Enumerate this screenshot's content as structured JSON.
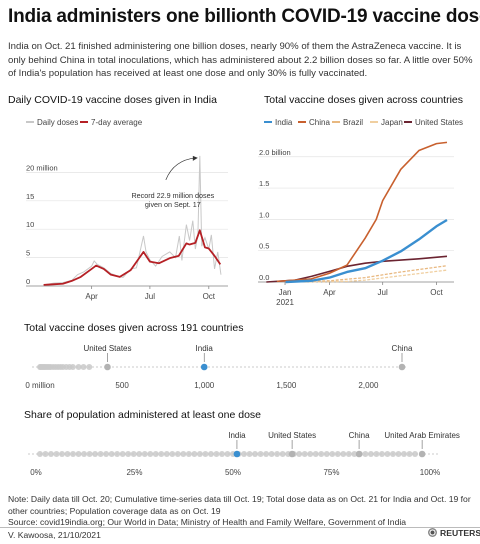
{
  "title": "India administers one billionth COVID-19 vaccine dose",
  "subtitle": "India on Oct. 21 finished administering one billion doses, nearly 90% of them the AstraZeneca vaccine. It is only behind China in total inoculations, which has administered about 2.2 billion doses so far. A little over 50% of India's population has received at least one dose and only 30% is fully vaccinated.",
  "note": "Note: Daily data till Oct. 20; Cumulative time-series data till Oct. 19; Total dose data as on Oct. 21 for India and Oct. 19 for other countries; Population coverage data as on Oct. 19",
  "source": "Source: covid19india.org; Our World in Data; Ministry of Health and Family Welfare, Government of India",
  "byline": "V. Kawoosa, 21/10/2021",
  "logo": "REUTERS",
  "colors": {
    "india": "#3a8fd0",
    "china": "#c8602e",
    "brazil": "#e8b880",
    "japan": "#f0cfa0",
    "us": "#6b2431",
    "avg": "#b52025",
    "daily": "#c8c8c8",
    "dot": "#c9c9c9"
  },
  "chart_data": [
    {
      "type": "line",
      "title": "Daily COVID-19 vaccine doses given in India",
      "legend": [
        "Daily doses",
        "7-day average"
      ],
      "unit_label": "20 million",
      "y_ticks": [
        "0",
        "5",
        "10",
        "15",
        "20 million"
      ],
      "ylim": [
        0,
        25
      ],
      "x_ticks": [
        "Apr",
        "Jul",
        "Oct"
      ],
      "annotation": "Record 22.9 million doses given on Sept. 17",
      "series": [
        {
          "name": "7-day average",
          "x": [
            "2021-01-16",
            "2021-01-31",
            "2021-02-15",
            "2021-03-01",
            "2021-03-15",
            "2021-04-01",
            "2021-04-08",
            "2021-04-20",
            "2021-05-01",
            "2021-05-15",
            "2021-06-01",
            "2021-06-21",
            "2021-07-01",
            "2021-07-15",
            "2021-08-01",
            "2021-08-15",
            "2021-08-27",
            "2021-09-01",
            "2021-09-10",
            "2021-09-17",
            "2021-09-25",
            "2021-10-01",
            "2021-10-10",
            "2021-10-19"
          ],
          "values": [
            0.2,
            0.3,
            0.4,
            0.9,
            1.6,
            3.0,
            3.6,
            3.0,
            2.0,
            1.6,
            2.8,
            6.0,
            4.3,
            4.0,
            4.9,
            5.3,
            7.5,
            7.3,
            7.6,
            9.8,
            6.8,
            6.6,
            5.3,
            3.8
          ]
        },
        {
          "name": "Daily doses",
          "x": [
            "2021-01-16",
            "2021-02-01",
            "2021-02-15",
            "2021-03-01",
            "2021-03-10",
            "2021-03-20",
            "2021-04-01",
            "2021-04-05",
            "2021-04-10",
            "2021-04-20",
            "2021-05-01",
            "2021-05-10",
            "2021-05-20",
            "2021-06-01",
            "2021-06-10",
            "2021-06-21",
            "2021-06-25",
            "2021-07-01",
            "2021-07-10",
            "2021-07-20",
            "2021-08-01",
            "2021-08-10",
            "2021-08-16",
            "2021-08-20",
            "2021-08-27",
            "2021-09-01",
            "2021-09-06",
            "2021-09-10",
            "2021-09-14",
            "2021-09-17",
            "2021-09-20",
            "2021-09-25",
            "2021-10-01",
            "2021-10-05",
            "2021-10-10",
            "2021-10-15",
            "2021-10-20"
          ],
          "values": [
            0.2,
            0.5,
            0.6,
            1.0,
            2.0,
            2.5,
            3.5,
            4.4,
            3.8,
            3.2,
            2.2,
            1.8,
            1.5,
            3.0,
            3.2,
            8.8,
            6.0,
            4.6,
            3.5,
            5.2,
            6.0,
            5.0,
            8.8,
            4.5,
            10.8,
            8.0,
            11.5,
            6.5,
            9.0,
            22.9,
            7.0,
            8.5,
            6.5,
            9.0,
            3.0,
            6.0,
            2.0
          ]
        }
      ]
    },
    {
      "type": "line",
      "title": "Total vaccine doses given across countries",
      "legend_labels": [
        "India",
        "China",
        "Brazil",
        "Japan",
        "United States"
      ],
      "y_ticks": [
        "0.0",
        "0.5",
        "1.0",
        "1.5",
        "2.0 billion"
      ],
      "ylim": [
        0,
        2.3
      ],
      "x_ticks": [
        "Jan\n2021",
        "Apr",
        "Jul",
        "Oct"
      ],
      "series": [
        {
          "name": "India",
          "x": [
            "2021-01-16",
            "2021-03-01",
            "2021-04-01",
            "2021-05-01",
            "2021-06-01",
            "2021-07-01",
            "2021-08-01",
            "2021-09-01",
            "2021-10-01",
            "2021-10-19"
          ],
          "values": [
            0,
            0.02,
            0.07,
            0.16,
            0.22,
            0.34,
            0.49,
            0.68,
            0.89,
            0.99
          ]
        },
        {
          "name": "China",
          "x": [
            "2021-01-01",
            "2021-03-01",
            "2021-04-01",
            "2021-05-01",
            "2021-06-01",
            "2021-06-20",
            "2021-07-01",
            "2021-08-01",
            "2021-09-01",
            "2021-10-01",
            "2021-10-19"
          ],
          "values": [
            0.01,
            0.05,
            0.14,
            0.27,
            0.7,
            1.0,
            1.3,
            1.8,
            2.1,
            2.21,
            2.23
          ]
        },
        {
          "name": "Brazil",
          "x": [
            "2021-01-17",
            "2021-04-01",
            "2021-06-01",
            "2021-08-01",
            "2021-10-19"
          ],
          "values": [
            0,
            0.02,
            0.07,
            0.16,
            0.26
          ]
        },
        {
          "name": "Japan",
          "x": [
            "2021-02-17",
            "2021-05-01",
            "2021-06-01",
            "2021-08-01",
            "2021-10-19"
          ],
          "values": [
            0,
            0.01,
            0.03,
            0.1,
            0.19
          ]
        },
        {
          "name": "United States",
          "x": [
            "2020-12-14",
            "2021-02-01",
            "2021-03-01",
            "2021-04-01",
            "2021-05-01",
            "2021-06-01",
            "2021-07-01",
            "2021-08-01",
            "2021-09-01",
            "2021-10-19"
          ],
          "values": [
            0,
            0.03,
            0.09,
            0.17,
            0.25,
            0.3,
            0.33,
            0.35,
            0.37,
            0.41
          ]
        }
      ]
    },
    {
      "type": "scatter",
      "title": "Total vaccine doses given across 191 countries",
      "x_ticks": [
        0,
        500,
        1000,
        1500,
        2000
      ],
      "x_tick_labels": [
        "0 million",
        "500",
        "1,000",
        "1,500",
        "2,000"
      ],
      "xlim": [
        0,
        2180
      ],
      "highlight": [
        {
          "name": "United States",
          "value": 411
        },
        {
          "name": "India",
          "value": 1000
        },
        {
          "name": "China",
          "value": 2230
        }
      ],
      "others": [
        0,
        5,
        12,
        20,
        28,
        36,
        45,
        55,
        65,
        80,
        95,
        110,
        125,
        140,
        160,
        180,
        200,
        235,
        265,
        300
      ]
    },
    {
      "type": "scatter",
      "title": "Share of population administered at least one dose",
      "x_ticks": [
        0,
        25,
        50,
        75,
        100
      ],
      "x_tick_labels": [
        "0%",
        "25%",
        "50%",
        "75%",
        "100%"
      ],
      "xlim": [
        0,
        100
      ],
      "highlight": [
        {
          "name": "India",
          "value": 51
        },
        {
          "name": "United States",
          "value": 65
        },
        {
          "name": "China",
          "value": 82
        },
        {
          "name": "United Arab Emirates",
          "value": 98
        }
      ],
      "dot_range": [
        1,
        97
      ],
      "dot_step": 1.4
    }
  ]
}
